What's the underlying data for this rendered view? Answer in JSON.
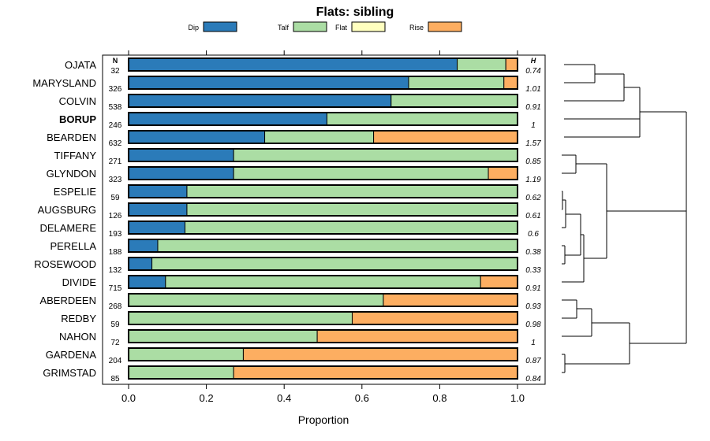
{
  "chart_data": {
    "type": "bar",
    "orientation": "horizontal",
    "stacked": true,
    "title": "Flats: sibling",
    "xlabel": "Proportion",
    "xlim": [
      0,
      1
    ],
    "x_ticks": [
      "0.0",
      "0.2",
      "0.4",
      "0.6",
      "0.8",
      "1.0"
    ],
    "x_tick_values": [
      0,
      0.2,
      0.4,
      0.6,
      0.8,
      1.0
    ],
    "n_header": "N",
    "h_header": "H",
    "legend": [
      {
        "name": "Dip",
        "color": "#2b7bb9"
      },
      {
        "name": "Talf",
        "color": "#abdda4"
      },
      {
        "name": "Flat",
        "color": "#ffffbf"
      },
      {
        "name": "Rise",
        "color": "#fdae61"
      }
    ],
    "categories": [
      "OJATA",
      "MARYSLAND",
      "COLVIN",
      "BORUP",
      "BEARDEN",
      "TIFFANY",
      "GLYNDON",
      "ESPELIE",
      "AUGSBURG",
      "DELAMERE",
      "PERELLA",
      "ROSEWOOD",
      "DIVIDE",
      "ABERDEEN",
      "REDBY",
      "NAHON",
      "GARDENA",
      "GRIMSTAD"
    ],
    "bold_category": "BORUP",
    "n_values": [
      "32",
      "326",
      "538",
      "246",
      "632",
      "271",
      "323",
      "59",
      "126",
      "193",
      "188",
      "132",
      "715",
      "268",
      "59",
      "72",
      "204",
      "85"
    ],
    "h_values": [
      "0.74",
      "1.01",
      "0.91",
      "1",
      "1.57",
      "0.85",
      "1.19",
      "0.62",
      "0.61",
      "0.6",
      "0.38",
      "0.33",
      "0.91",
      "0.93",
      "0.98",
      "1",
      "0.87",
      "0.84"
    ],
    "series": [
      {
        "name": "Dip",
        "values": [
          0.845,
          0.72,
          0.675,
          0.51,
          0.35,
          0.27,
          0.27,
          0.15,
          0.15,
          0.145,
          0.075,
          0.06,
          0.095,
          0,
          0,
          0,
          0,
          0
        ]
      },
      {
        "name": "Talf",
        "values": [
          0.125,
          0.245,
          0.325,
          0.49,
          0.28,
          0.73,
          0.655,
          0.85,
          0.85,
          0.855,
          0.925,
          0.94,
          0.81,
          0.655,
          0.575,
          0.485,
          0.295,
          0.27
        ]
      },
      {
        "name": "Flat",
        "values": [
          0,
          0,
          0,
          0,
          0,
          0,
          0,
          0,
          0,
          0,
          0,
          0,
          0,
          0,
          0,
          0,
          0,
          0
        ]
      },
      {
        "name": "Rise",
        "values": [
          0.03,
          0.035,
          0,
          0,
          0.37,
          0,
          0.075,
          0,
          0,
          0,
          0,
          0,
          0.095,
          0.345,
          0.425,
          0.515,
          0.705,
          0.73
        ]
      }
    ]
  }
}
